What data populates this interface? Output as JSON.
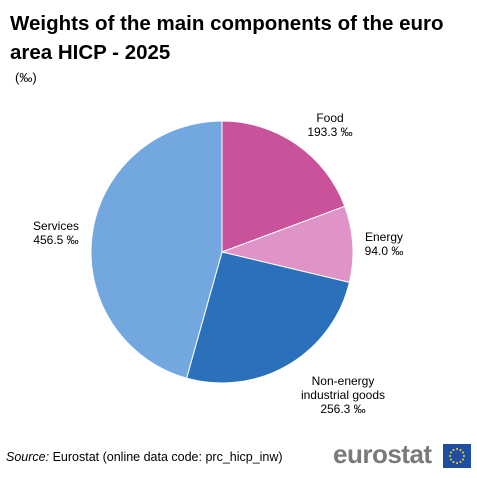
{
  "title": "Weights of the main components of the euro area HICP - 2025",
  "unit": "(‰)",
  "source": {
    "label": "Source:",
    "text": "Eurostat (online data code: prc_hicp_inw)"
  },
  "logo": {
    "text": "eurostat",
    "icon": "eu-flag-icon"
  },
  "colors": {
    "Food": "#c9529a",
    "Energy": "#e093c6",
    "Non-energy industrial goods": "#2a70ba",
    "Services": "#72a8df"
  },
  "chart_data": {
    "type": "pie",
    "title": "Weights of the main components of the euro area HICP - 2025",
    "unit": "‰",
    "start": "top, clockwise",
    "legend": "none (direct labels)",
    "slices": [
      {
        "label": "Food",
        "value": 193.3,
        "value_label": "193.3 ‰",
        "label_lines": [
          "Food"
        ]
      },
      {
        "label": "Energy",
        "value": 94.0,
        "value_label": "94.0 ‰",
        "label_lines": [
          "Energy"
        ]
      },
      {
        "label": "Non-energy industrial goods",
        "value": 256.3,
        "value_label": "256.3 ‰",
        "label_lines": [
          "Non-energy",
          "industrial goods"
        ]
      },
      {
        "label": "Services",
        "value": 456.5,
        "value_label": "456.5 ‰",
        "label_lines": [
          "Services"
        ]
      }
    ]
  }
}
